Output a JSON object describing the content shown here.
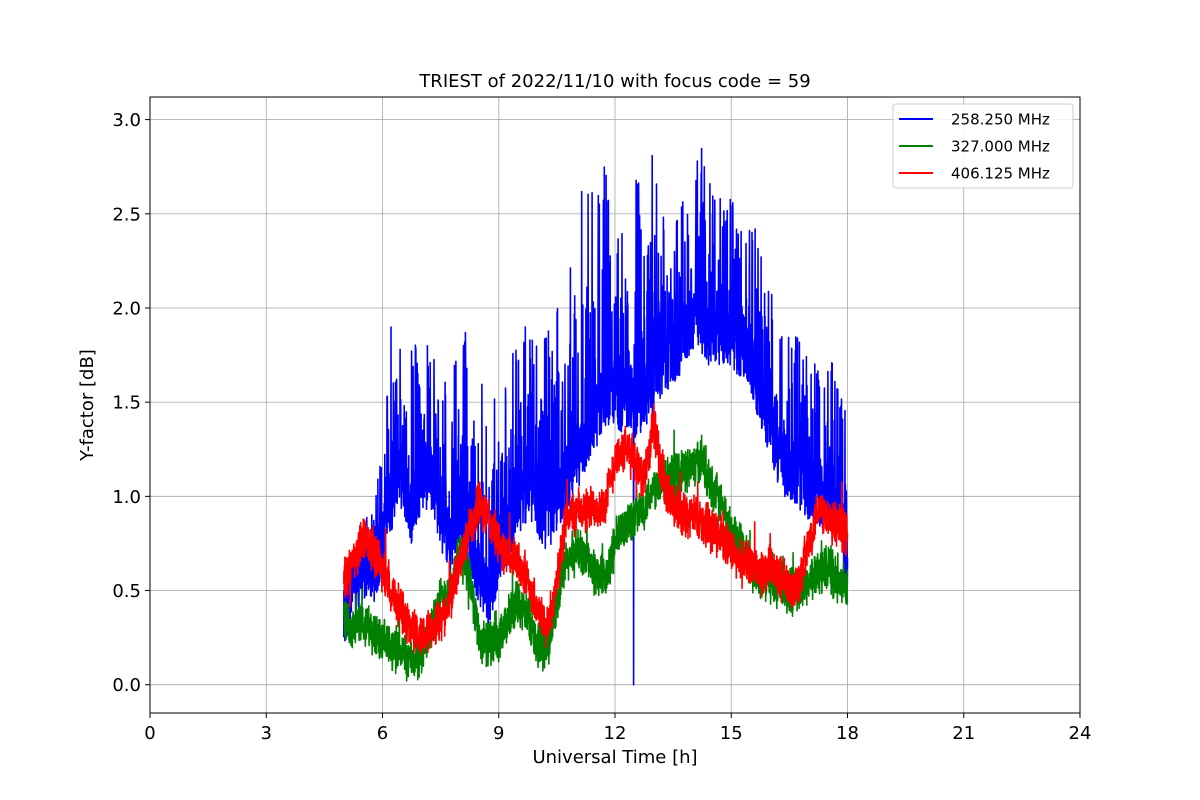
{
  "chart_data": {
    "type": "line",
    "title": "TRIEST of 2022/11/10 with focus code = 59",
    "xlabel": "Universal Time [h]",
    "ylabel": "Y-factor [dB]",
    "xlim": [
      0,
      24
    ],
    "ylim": [
      -0.15,
      3.12
    ],
    "x_ticks": [
      0,
      3,
      6,
      9,
      12,
      15,
      18,
      21,
      24
    ],
    "y_ticks": [
      0.0,
      0.5,
      1.0,
      1.5,
      2.0,
      2.5,
      3.0
    ],
    "x_tick_labels": [
      "0",
      "3",
      "6",
      "9",
      "12",
      "15",
      "18",
      "21",
      "24"
    ],
    "y_tick_labels": [
      "0.0",
      "0.5",
      "1.0",
      "1.5",
      "2.0",
      "2.5",
      "3.0"
    ],
    "grid": true,
    "legend_position": "top-right",
    "series": [
      {
        "name": "258.250 MHz",
        "color": "#0000ff",
        "x": [
          5.0,
          5.25,
          5.5,
          5.75,
          6.0,
          6.1,
          6.25,
          6.4,
          6.5,
          6.75,
          7.0,
          7.25,
          7.5,
          7.75,
          8.0,
          8.25,
          8.5,
          8.75,
          9.0,
          9.25,
          9.5,
          9.75,
          10.0,
          10.25,
          10.5,
          10.75,
          11.0,
          11.25,
          11.5,
          11.75,
          12.0,
          12.25,
          12.4,
          12.5,
          12.75,
          13.0,
          13.25,
          13.5,
          13.75,
          14.0,
          14.25,
          14.5,
          14.75,
          15.0,
          15.25,
          15.5,
          15.75,
          16.0,
          16.25,
          16.5,
          16.75,
          17.0,
          17.25,
          17.5,
          17.75,
          18.0
        ],
        "mean": [
          0.32,
          0.5,
          0.63,
          0.6,
          0.72,
          0.95,
          1.0,
          1.15,
          1.1,
          0.92,
          1.1,
          1.1,
          0.9,
          0.75,
          0.95,
          0.75,
          0.6,
          0.45,
          0.72,
          0.85,
          0.95,
          1.05,
          0.95,
          0.88,
          0.98,
          1.1,
          1.2,
          1.3,
          1.42,
          1.55,
          1.55,
          1.5,
          1.55,
          1.45,
          1.52,
          1.62,
          1.72,
          1.75,
          1.85,
          1.95,
          1.92,
          1.85,
          1.88,
          1.85,
          1.8,
          1.72,
          1.55,
          1.38,
          1.2,
          1.15,
          1.1,
          1.05,
          1.0,
          1.0,
          0.98,
          0.6
        ],
        "peak": [
          0.7,
          0.72,
          0.92,
          0.9,
          1.3,
          1.93,
          2.1,
          1.94,
          1.9,
          1.9,
          1.7,
          1.92,
          1.45,
          1.82,
          1.8,
          1.95,
          1.9,
          1.55,
          1.6,
          1.6,
          1.95,
          1.92,
          1.88,
          2.0,
          2.05,
          2.05,
          2.65,
          2.68,
          2.62,
          2.85,
          2.5,
          2.52,
          2.4,
          2.7,
          2.72,
          2.85,
          2.55,
          2.6,
          2.62,
          2.75,
          2.97,
          2.62,
          2.6,
          2.65,
          2.5,
          2.47,
          2.4,
          2.12,
          1.95,
          1.95,
          1.85,
          1.9,
          1.65,
          1.75,
          1.65,
          1.4
        ],
        "low_spike": {
          "x": 12.48,
          "y": 0.0
        }
      },
      {
        "name": "327.000 MHz",
        "color": "#008000",
        "x": [
          5.0,
          5.25,
          5.5,
          5.75,
          6.0,
          6.25,
          6.5,
          6.75,
          7.0,
          7.25,
          7.5,
          7.75,
          8.0,
          8.25,
          8.5,
          8.75,
          9.0,
          9.25,
          9.5,
          9.75,
          10.0,
          10.25,
          10.5,
          10.75,
          11.0,
          11.25,
          11.5,
          11.75,
          12.0,
          12.25,
          12.5,
          12.75,
          13.0,
          13.25,
          13.5,
          13.75,
          14.0,
          14.25,
          14.5,
          14.75,
          15.0,
          15.25,
          15.5,
          15.75,
          16.0,
          16.25,
          16.5,
          16.75,
          17.0,
          17.25,
          17.5,
          17.75,
          18.0
        ],
        "mean": [
          0.35,
          0.3,
          0.35,
          0.28,
          0.22,
          0.2,
          0.18,
          0.12,
          0.15,
          0.32,
          0.45,
          0.5,
          0.7,
          0.58,
          0.25,
          0.22,
          0.22,
          0.35,
          0.45,
          0.35,
          0.2,
          0.2,
          0.45,
          0.65,
          0.72,
          0.68,
          0.6,
          0.55,
          0.75,
          0.85,
          0.9,
          0.95,
          1.05,
          1.1,
          1.1,
          1.15,
          1.15,
          1.2,
          1.05,
          0.95,
          0.82,
          0.75,
          0.62,
          0.55,
          0.55,
          0.52,
          0.5,
          0.5,
          0.55,
          0.6,
          0.62,
          0.55,
          0.5
        ],
        "noise": 0.1
      },
      {
        "name": "406.125 MHz",
        "color": "#ff0000",
        "x": [
          5.0,
          5.25,
          5.5,
          5.75,
          6.0,
          6.25,
          6.5,
          6.75,
          7.0,
          7.25,
          7.5,
          7.75,
          8.0,
          8.25,
          8.5,
          8.75,
          9.0,
          9.25,
          9.5,
          9.75,
          10.0,
          10.25,
          10.5,
          10.75,
          11.0,
          11.25,
          11.5,
          11.75,
          12.0,
          12.25,
          12.5,
          12.75,
          13.0,
          13.25,
          13.5,
          13.75,
          14.0,
          14.25,
          14.5,
          14.75,
          15.0,
          15.25,
          15.5,
          15.75,
          16.0,
          16.25,
          16.5,
          16.75,
          17.0,
          17.25,
          17.5,
          17.75,
          18.0
        ],
        "mean": [
          0.55,
          0.65,
          0.78,
          0.72,
          0.62,
          0.5,
          0.38,
          0.3,
          0.25,
          0.3,
          0.35,
          0.45,
          0.65,
          0.85,
          0.95,
          0.88,
          0.75,
          0.68,
          0.65,
          0.55,
          0.4,
          0.3,
          0.55,
          0.9,
          0.92,
          0.92,
          0.95,
          0.95,
          1.2,
          1.25,
          1.2,
          1.1,
          1.4,
          1.05,
          0.95,
          0.9,
          0.9,
          0.85,
          0.82,
          0.8,
          0.7,
          0.65,
          0.65,
          0.6,
          0.62,
          0.58,
          0.5,
          0.55,
          0.75,
          0.95,
          0.9,
          0.85,
          0.8
        ],
        "noise": 0.1
      }
    ]
  }
}
